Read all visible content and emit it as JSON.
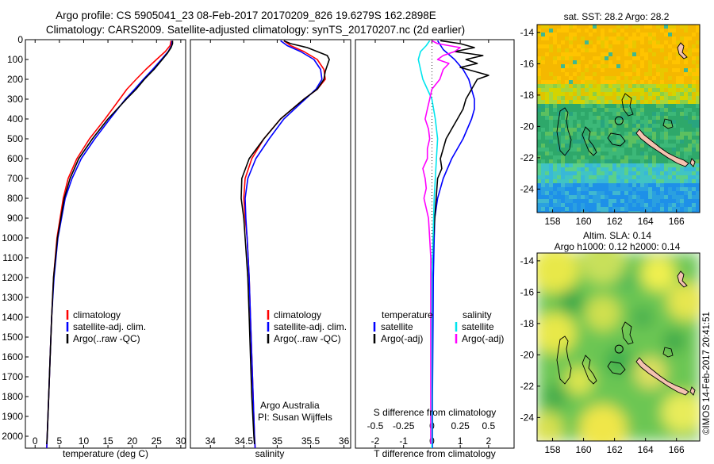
{
  "title_line1": "Argo profile: CS 5905041_23 08-Feb-2017 20170209_826 19.6279S 162.2898E",
  "title_line2": "Climatology: CARS2009. Satellite-adjusted climatology: synTS_20170207.nc (2d earlier)",
  "timestamp": "©IMOS 14-Feb-2017 20:41:51",
  "colors": {
    "climatology": "#ff0000",
    "satellite": "#0000ff",
    "argo": "#000000",
    "satellite_salinity": "#00e5ee",
    "argo_salinity": "#ff00ff"
  },
  "chart_data": [
    {
      "type": "line",
      "id": "temperature",
      "xlabel": "temperature (deg C)",
      "xlim": [
        -2,
        31
      ],
      "ylim": [
        0,
        2060
      ],
      "xticks": [
        "0",
        "5",
        "10",
        "15",
        "20",
        "25",
        "30"
      ],
      "yticks": [
        "0",
        "100",
        "200",
        "300",
        "400",
        "500",
        "600",
        "700",
        "800",
        "900",
        "1000",
        "1100",
        "1200",
        "1300",
        "1400",
        "1500",
        "1600",
        "1700",
        "1800",
        "1900",
        "2000"
      ],
      "legend": [
        "climatology",
        "satellite-adj. clim.",
        "Argo(..raw -QC)"
      ],
      "series": [
        {
          "name": "climatology",
          "depth": [
            5,
            30,
            60,
            100,
            150,
            200,
            250,
            300,
            400,
            500,
            600,
            700,
            800,
            1000,
            1200,
            1400,
            1600,
            1800,
            2000,
            2060
          ],
          "values": [
            28.0,
            27.8,
            26.8,
            25.0,
            22.8,
            20.8,
            18.9,
            17.4,
            14.4,
            11.2,
            8.6,
            6.8,
            5.8,
            4.5,
            3.8,
            3.4,
            3.1,
            2.8,
            2.5,
            2.4
          ]
        },
        {
          "name": "satellite-adj. clim.",
          "depth": [
            5,
            30,
            60,
            100,
            150,
            200,
            250,
            300,
            400,
            500,
            600,
            700,
            800,
            1000,
            1200,
            1400,
            1600,
            1800,
            2000,
            2060
          ],
          "values": [
            28.2,
            28.1,
            27.4,
            26.0,
            24.2,
            22.3,
            20.5,
            18.6,
            15.4,
            12.3,
            9.5,
            7.6,
            6.2,
            4.7,
            3.9,
            3.4,
            3.1,
            2.8,
            2.5,
            2.4
          ]
        },
        {
          "name": "Argo(..raw -QC)",
          "depth": [
            5,
            20,
            40,
            70,
            100,
            150,
            200,
            250,
            300,
            400,
            500,
            600,
            700,
            800,
            1000,
            1200,
            1400,
            1600,
            1800,
            2000,
            2040
          ],
          "values": [
            28.3,
            28.3,
            28.0,
            27.2,
            26.2,
            24.5,
            22.5,
            20.8,
            18.8,
            15.0,
            11.8,
            9.0,
            7.2,
            6.0,
            4.6,
            3.8,
            3.4,
            3.1,
            2.8,
            2.5,
            2.4
          ]
        }
      ]
    },
    {
      "type": "line",
      "id": "salinity",
      "xlabel": "salinity",
      "xlim": [
        33.7,
        36.1
      ],
      "ylim": [
        0,
        2060
      ],
      "xticks": [
        "34",
        "34.5",
        "35",
        "35.5",
        "36"
      ],
      "legend": [
        "climatology",
        "satellite-adj. clim.",
        "Argo(..raw -QC)"
      ],
      "annotation": [
        "Argo Australia",
        "PI: Susan Wijffels"
      ],
      "series": [
        {
          "name": "climatology",
          "depth": [
            5,
            30,
            60,
            100,
            150,
            200,
            250,
            300,
            400,
            500,
            600,
            700,
            800,
            900,
            1000,
            1200,
            1400,
            1600,
            1800,
            2000,
            2060
          ],
          "values": [
            35.1,
            35.2,
            35.4,
            35.6,
            35.7,
            35.72,
            35.6,
            35.4,
            35.05,
            34.8,
            34.62,
            34.52,
            34.5,
            34.52,
            34.55,
            34.58,
            34.6,
            34.62,
            34.64,
            34.66,
            34.67
          ]
        },
        {
          "name": "satellite-adj. clim.",
          "depth": [
            5,
            30,
            60,
            100,
            150,
            200,
            250,
            300,
            400,
            500,
            600,
            700,
            800,
            900,
            1000,
            1200,
            1400,
            1600,
            1800,
            2000,
            2060
          ],
          "values": [
            35.05,
            35.15,
            35.35,
            35.55,
            35.65,
            35.67,
            35.58,
            35.42,
            35.1,
            34.88,
            34.68,
            34.56,
            34.52,
            34.53,
            34.55,
            34.58,
            34.6,
            34.62,
            34.64,
            34.66,
            34.67
          ]
        },
        {
          "name": "Argo(..raw -QC)",
          "depth": [
            5,
            20,
            40,
            60,
            80,
            100,
            130,
            160,
            200,
            250,
            300,
            400,
            500,
            600,
            700,
            800,
            900,
            1000,
            1200,
            1400,
            1600,
            1800,
            2000,
            2040
          ],
          "values": [
            35.1,
            35.2,
            35.45,
            35.6,
            35.75,
            35.78,
            35.75,
            35.72,
            35.7,
            35.6,
            35.4,
            35.05,
            34.8,
            34.58,
            34.47,
            34.46,
            34.5,
            34.52,
            34.56,
            34.58,
            34.6,
            34.62,
            34.65,
            34.66
          ]
        }
      ]
    },
    {
      "type": "line",
      "id": "difference",
      "xlabel": "T difference from climatology",
      "xlabel_top": "S difference from climatology",
      "xlim": [
        -2.7,
        2.9
      ],
      "ylim": [
        0,
        2060
      ],
      "xticks": [
        "-2",
        "-1",
        "0",
        "1",
        "2"
      ],
      "xticks_top": [
        "-0.5",
        "-0.25",
        "0",
        "0.25",
        "0.5"
      ],
      "legend_temperature_title": "temperature",
      "legend_temperature": [
        "satellite",
        "Argo(-adj)"
      ],
      "legend_salinity_title": "salinity",
      "legend_salinity": [
        "satellite",
        "Argo(-adj)"
      ],
      "series": [
        {
          "name": "temperature satellite",
          "depth": [
            5,
            50,
            100,
            150,
            200,
            250,
            300,
            350,
            400,
            500,
            600,
            700,
            800,
            900,
            1000,
            1200,
            1400,
            1600,
            1800,
            2000,
            2060
          ],
          "values": [
            0.2,
            0.4,
            0.8,
            1.1,
            1.3,
            1.4,
            1.5,
            1.5,
            1.4,
            1.1,
            0.7,
            0.4,
            0.2,
            0.1,
            0.08,
            0.05,
            0.04,
            0.03,
            0.02,
            0.02,
            0.02
          ]
        },
        {
          "name": "temperature Argo(-adj)",
          "depth": [
            5,
            20,
            40,
            60,
            80,
            100,
            120,
            140,
            160,
            180,
            200,
            250,
            300,
            350,
            400,
            450,
            500,
            550,
            600,
            650,
            700,
            800,
            900,
            1000,
            1100,
            1200,
            1400,
            1600,
            1800,
            2000,
            2040
          ],
          "values": [
            0.3,
            1.0,
            1.5,
            0.8,
            1.8,
            1.2,
            1.6,
            1.0,
            1.5,
            2.0,
            1.6,
            1.4,
            1.2,
            1.1,
            0.9,
            0.7,
            0.5,
            0.4,
            0.3,
            0.35,
            0.2,
            0.15,
            0.1,
            0.05,
            0.02,
            0.0,
            0.0,
            0.0,
            0.0,
            0.0,
            0.0
          ]
        },
        {
          "name": "salinity satellite",
          "depth": [
            5,
            30,
            60,
            100,
            150,
            200,
            250,
            300,
            400,
            500,
            600,
            700,
            800,
            1000,
            1200,
            1400,
            1600,
            1800,
            2000,
            2060
          ],
          "values": [
            -0.02,
            -0.05,
            -0.1,
            -0.12,
            -0.1,
            -0.08,
            -0.04,
            0.0,
            0.03,
            0.05,
            0.04,
            0.03,
            0.02,
            0.01,
            0.0,
            0.0,
            0.0,
            0.0,
            0.0,
            0.0
          ]
        },
        {
          "name": "salinity Argo(-adj)",
          "depth": [
            5,
            20,
            40,
            60,
            80,
            100,
            120,
            150,
            200,
            250,
            300,
            350,
            400,
            450,
            500,
            550,
            600,
            650,
            700,
            750,
            800,
            900,
            1000,
            1100,
            1200,
            1400,
            1600,
            1800,
            2000,
            2040
          ],
          "values": [
            0.0,
            0.05,
            0.25,
            0.2,
            0.1,
            0.05,
            0.15,
            0.1,
            0.07,
            0.0,
            -0.02,
            -0.04,
            -0.06,
            -0.03,
            -0.02,
            -0.04,
            -0.04,
            -0.08,
            -0.06,
            -0.05,
            -0.07,
            -0.03,
            -0.02,
            -0.01,
            -0.01,
            -0.01,
            -0.01,
            -0.01,
            -0.01,
            -0.01
          ]
        }
      ]
    },
    {
      "type": "heatmap",
      "id": "sst_map",
      "title": "sat. SST: 28.2  Argo: 28.2",
      "xlim": [
        157,
        167.5
      ],
      "ylim": [
        -25.5,
        -13.5
      ],
      "xticks": [
        "158",
        "160",
        "162",
        "164",
        "166"
      ],
      "yticks": [
        "-14",
        "-16",
        "-18",
        "-20",
        "-22",
        "-24"
      ],
      "argo_position": [
        162.29,
        -19.63
      ]
    },
    {
      "type": "heatmap",
      "id": "sla_map",
      "title": "Altim. SLA: 0.14",
      "subtitle": "Argo h1000: 0.12  h2000: 0.14",
      "xlim": [
        157,
        167.5
      ],
      "ylim": [
        -25.5,
        -13.5
      ],
      "xticks": [
        "158",
        "160",
        "162",
        "164",
        "166"
      ],
      "yticks": [
        "-14",
        "-16",
        "-18",
        "-20",
        "-22",
        "-24"
      ],
      "argo_position": [
        162.29,
        -19.63
      ]
    }
  ]
}
